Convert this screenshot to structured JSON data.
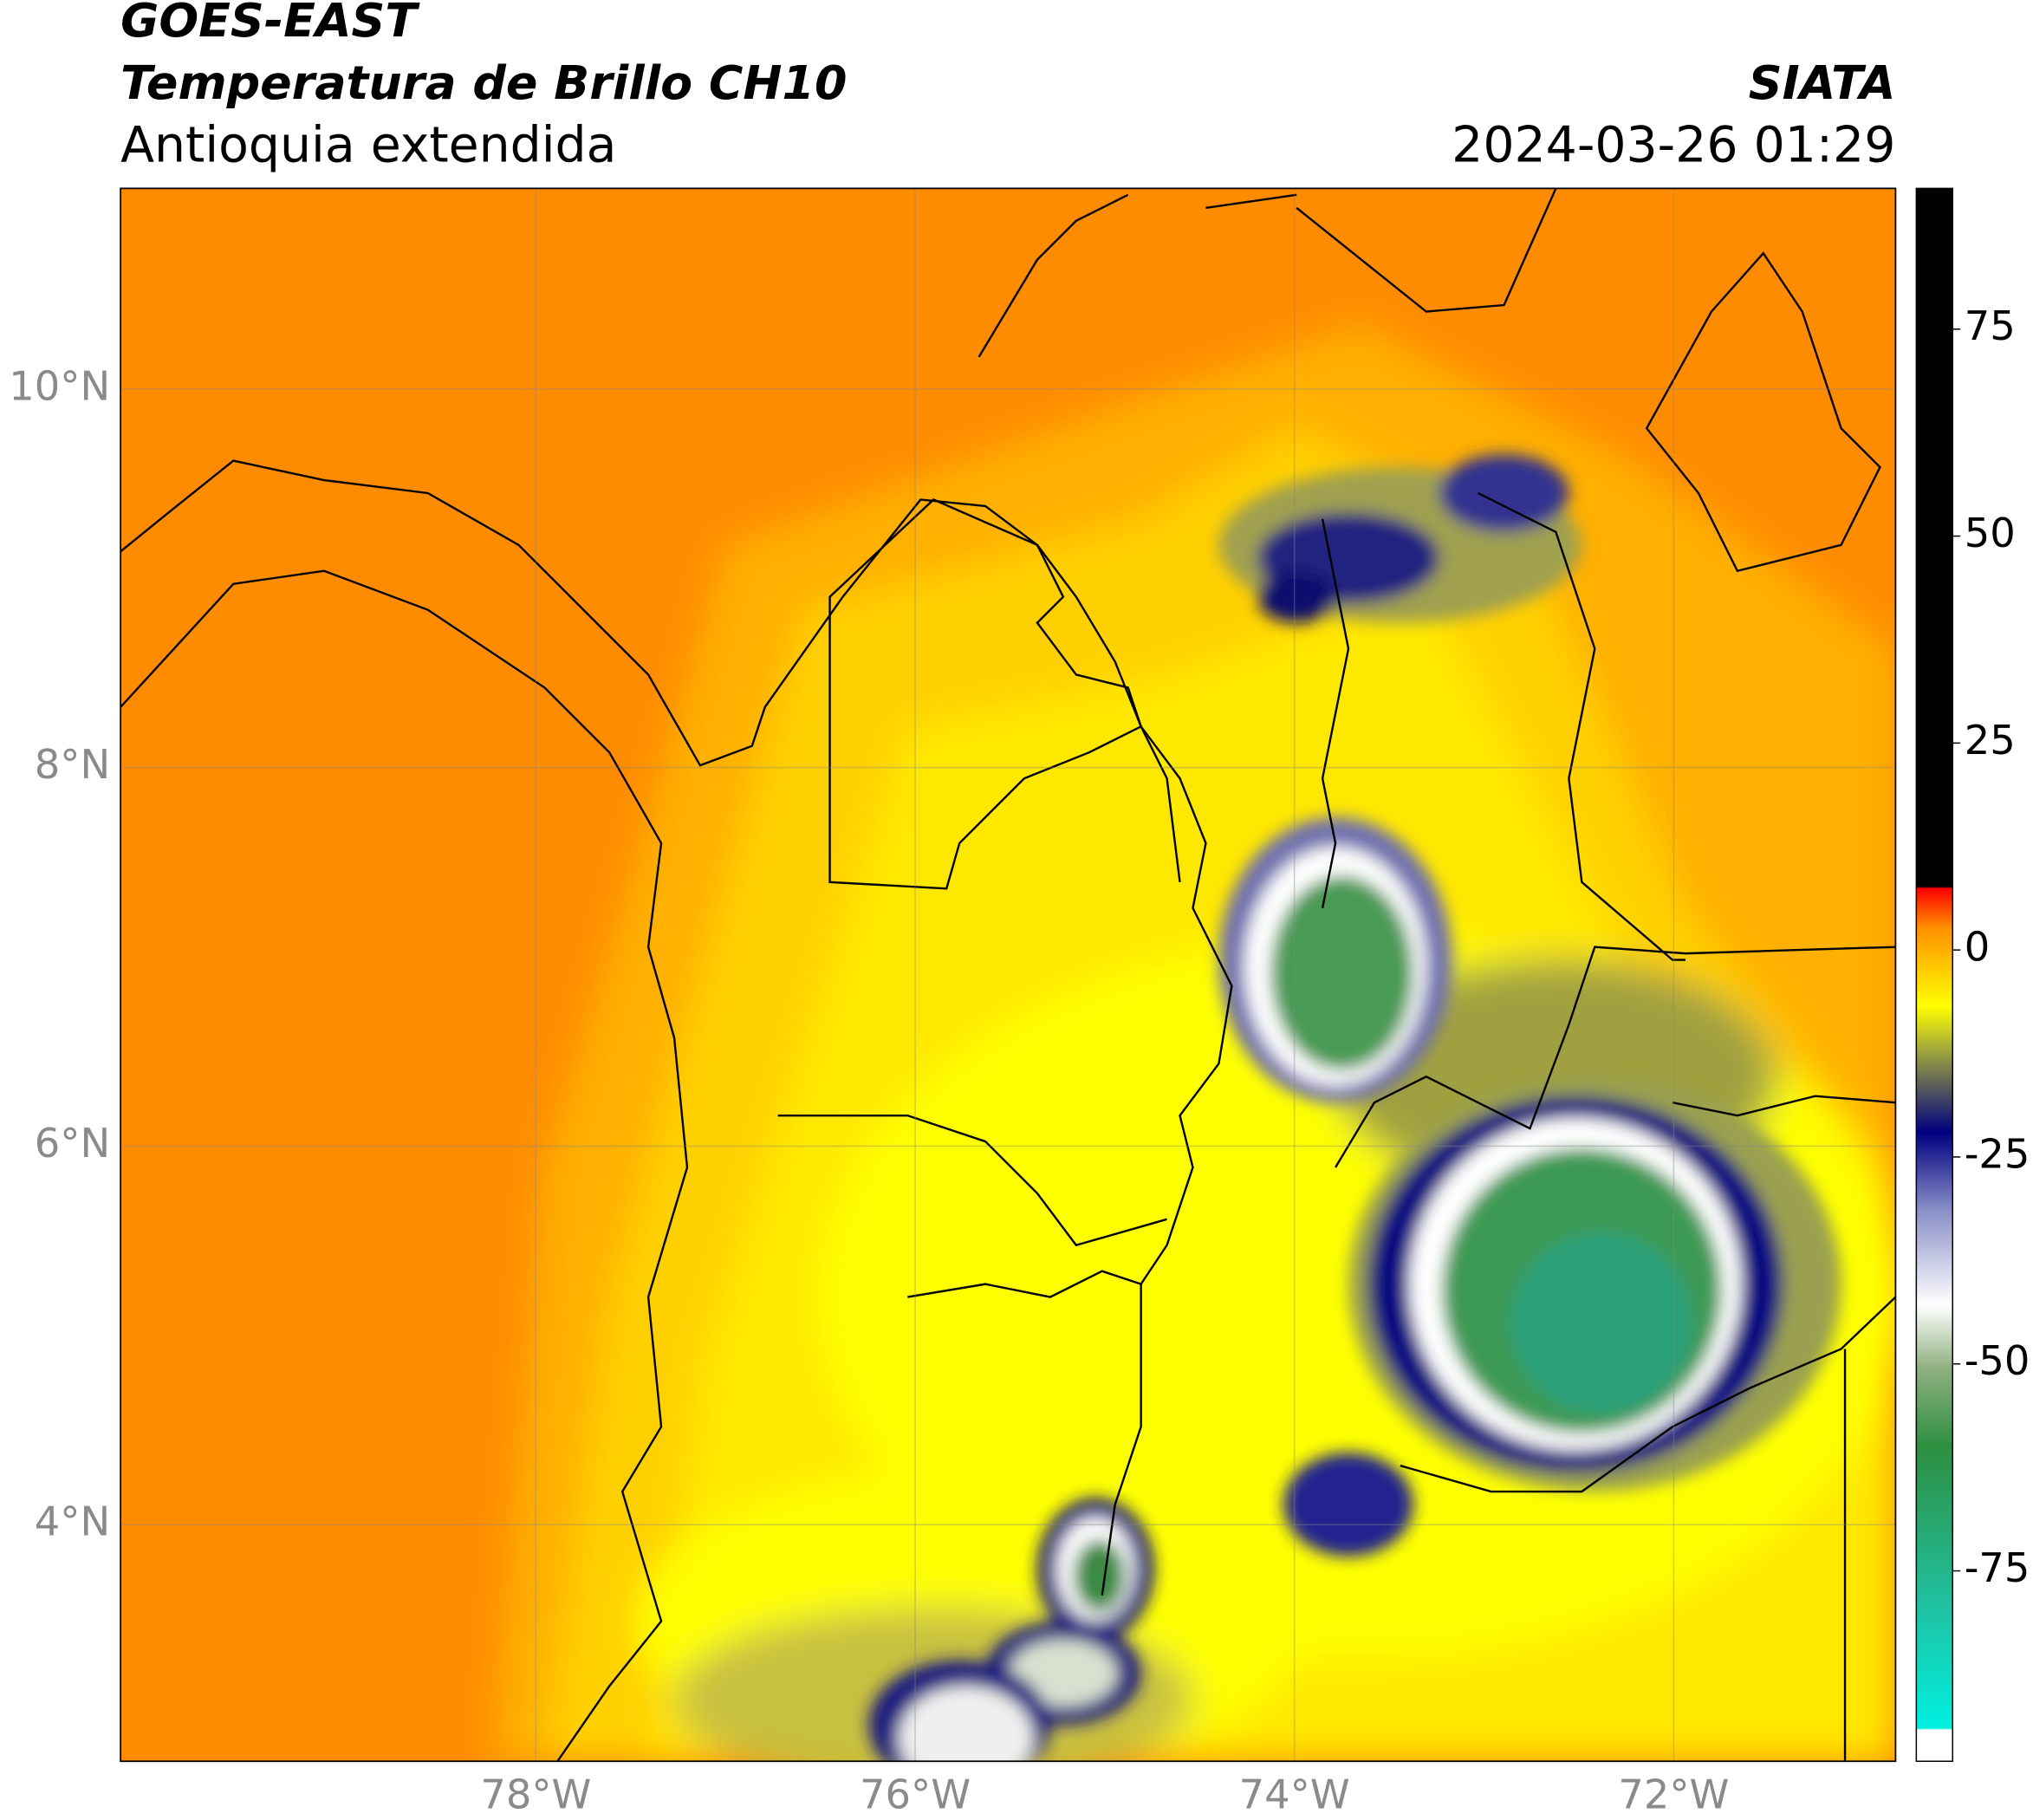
{
  "header": {
    "satellite": "GOES-EAST",
    "product": "Temperatura de Brillo CH10",
    "region": "Antioquia extendida",
    "agency": "SIATA",
    "datetime": "2024-03-26 01:29"
  },
  "map": {
    "lonlim": [
      -80.19,
      -70.83
    ],
    "latlim": [
      2.75,
      11.06
    ],
    "lon_ticks": [
      {
        "value": -78,
        "label": "78°W"
      },
      {
        "value": -76,
        "label": "76°W"
      },
      {
        "value": -74,
        "label": "74°W"
      },
      {
        "value": -72,
        "label": "72°W"
      }
    ],
    "lat_ticks": [
      {
        "value": 10,
        "label": "10°N"
      },
      {
        "value": 8,
        "label": "8°N"
      },
      {
        "value": 6,
        "label": "6°N"
      },
      {
        "value": 4,
        "label": "4°N"
      }
    ]
  },
  "colorbar": {
    "lim": [
      -98,
      92
    ],
    "ticks": [
      75,
      50,
      25,
      0,
      -25,
      -50,
      -75
    ]
  }
}
